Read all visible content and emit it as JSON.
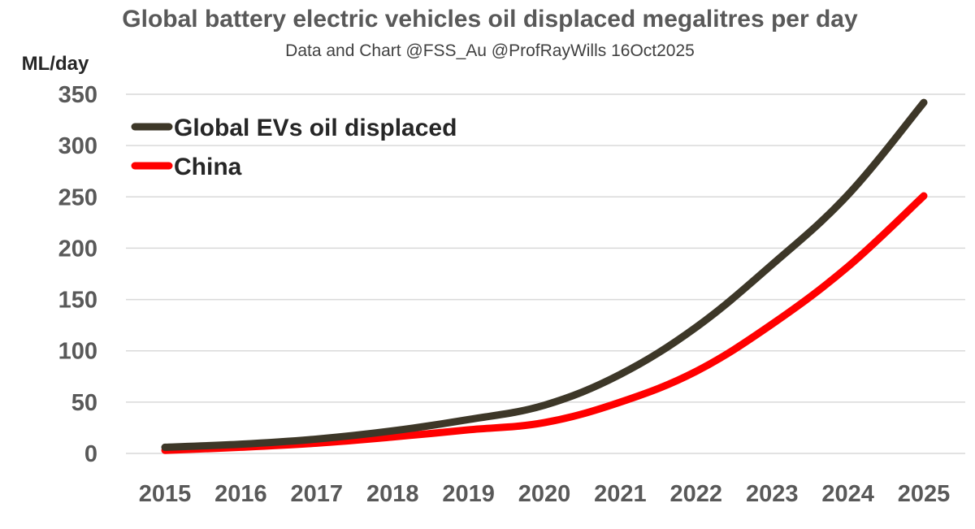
{
  "chart_data": {
    "type": "line",
    "title": "Global battery electric vehicles oil displaced megalitres per day",
    "subtitle": "Data and Chart @FSS_Au  @ProfRayWills 16Oct2025",
    "xlabel": "",
    "ylabel": "ML/day",
    "ylim": [
      0,
      350
    ],
    "yticks": [
      0,
      50,
      100,
      150,
      200,
      250,
      300,
      350
    ],
    "grid": true,
    "legend_position": "top-left",
    "categories": [
      "2015",
      "2016",
      "2017",
      "2018",
      "2019",
      "2020",
      "2021",
      "2022",
      "2023",
      "2024",
      "2025"
    ],
    "series": [
      {
        "name": "Global EVs oil displaced",
        "color": "#3d3728",
        "values": [
          6,
          9,
          14,
          22,
          33,
          47,
          77,
          123,
          184,
          252,
          342
        ]
      },
      {
        "name": "China",
        "color": "#ff0000",
        "values": [
          3,
          6,
          10,
          16,
          23,
          30,
          50,
          80,
          126,
          182,
          251
        ]
      }
    ]
  }
}
